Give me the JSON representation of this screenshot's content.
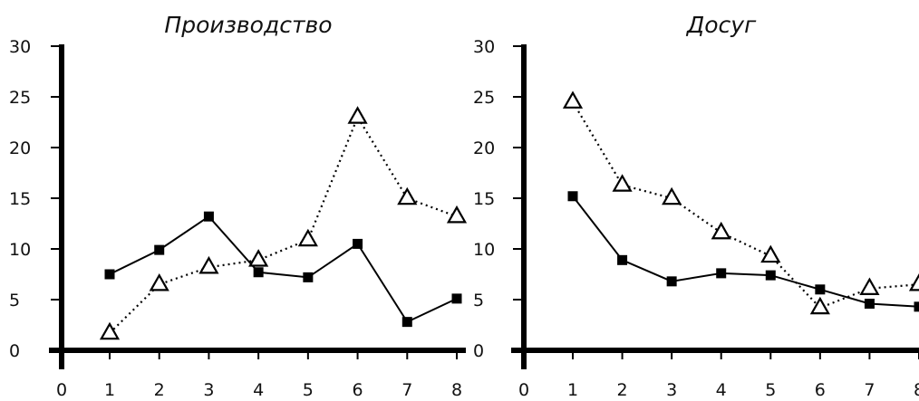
{
  "chart_data": [
    {
      "type": "line",
      "title": "Производство",
      "x": [
        1,
        2,
        3,
        4,
        5,
        6,
        7,
        8
      ],
      "xticks": [
        "0",
        "1",
        "2",
        "3",
        "4",
        "5",
        "6",
        "7",
        "8"
      ],
      "yticks": [
        "0",
        "5",
        "10",
        "15",
        "20",
        "25",
        "30"
      ],
      "xlim": [
        0,
        8
      ],
      "ylim": [
        0,
        30
      ],
      "grid": false,
      "series": [
        {
          "marker": "square",
          "style": "solid",
          "values": [
            7.5,
            9.9,
            13.2,
            7.7,
            7.2,
            10.5,
            2.8,
            5.1
          ]
        },
        {
          "marker": "open-triangle",
          "style": "dotted",
          "values": [
            1.7,
            6.5,
            8.2,
            8.9,
            10.9,
            23.0,
            15.0,
            13.2
          ]
        }
      ]
    },
    {
      "type": "line",
      "title": "Досуг",
      "x": [
        1,
        2,
        3,
        4,
        5,
        6,
        7,
        8
      ],
      "xticks": [
        "0",
        "1",
        "2",
        "3",
        "4",
        "5",
        "6",
        "7",
        "8"
      ],
      "yticks": [
        "0",
        "5",
        "10",
        "15",
        "20",
        "25",
        "30"
      ],
      "xlim": [
        0,
        8
      ],
      "ylim": [
        0,
        30
      ],
      "grid": false,
      "series": [
        {
          "marker": "square",
          "style": "solid",
          "values": [
            15.2,
            8.9,
            6.8,
            7.6,
            7.4,
            6.0,
            4.6,
            4.3
          ]
        },
        {
          "marker": "open-triangle",
          "style": "dotted",
          "values": [
            24.5,
            16.3,
            15.0,
            11.6,
            9.3,
            4.2,
            6.1,
            6.5
          ]
        }
      ]
    }
  ]
}
